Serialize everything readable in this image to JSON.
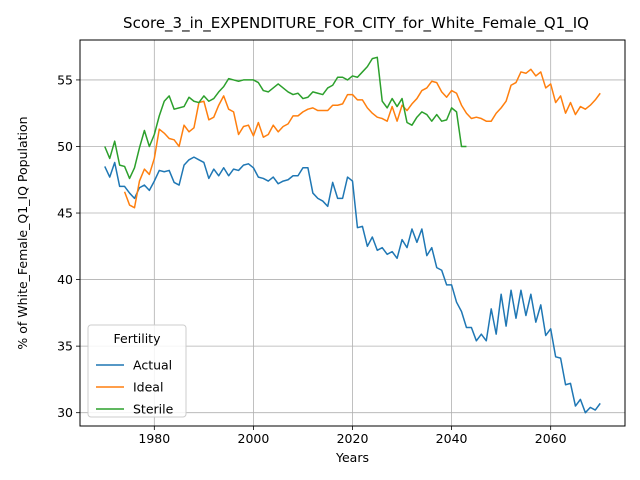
{
  "chart_data": {
    "type": "line",
    "title": "Score_3_in_EXPENDITURE_FOR_CITY_for_White_Female_Q1_IQ",
    "xlabel": "Years",
    "ylabel": "% of White_Female_Q1_IQ Population",
    "xlim": [
      1965,
      2075
    ],
    "ylim": [
      29,
      58
    ],
    "xticks": [
      1980,
      2000,
      2020,
      2040,
      2060
    ],
    "yticks": [
      30,
      35,
      40,
      45,
      50,
      55
    ],
    "grid": true,
    "legend": {
      "title": "Fertility",
      "position": "lower-left"
    },
    "series": [
      {
        "name": "Actual",
        "color": "#1f77b4",
        "x": [
          1970,
          1971,
          1972,
          1973,
          1974,
          1975,
          1976,
          1977,
          1978,
          1979,
          1980,
          1981,
          1982,
          1983,
          1984,
          1985,
          1986,
          1987,
          1988,
          1989,
          1990,
          1991,
          1992,
          1993,
          1994,
          1995,
          1996,
          1997,
          1998,
          1999,
          2000,
          2001,
          2002,
          2003,
          2004,
          2005,
          2006,
          2007,
          2008,
          2009,
          2010,
          2011,
          2012,
          2013,
          2014,
          2015,
          2016,
          2017,
          2018,
          2019,
          2020,
          2021,
          2022,
          2023,
          2024,
          2025,
          2026,
          2027,
          2028,
          2029,
          2030,
          2031,
          2032,
          2033,
          2034,
          2035,
          2036,
          2037,
          2038,
          2039,
          2040,
          2041,
          2042,
          2043,
          2044,
          2045,
          2046,
          2047,
          2048,
          2049,
          2050,
          2051,
          2052,
          2053,
          2054,
          2055,
          2056,
          2057,
          2058,
          2059,
          2060,
          2061,
          2062,
          2063,
          2064,
          2065,
          2066,
          2067,
          2068,
          2069,
          2070
        ],
        "values": [
          48.5,
          47.7,
          48.8,
          47.0,
          47.0,
          46.5,
          46.1,
          46.9,
          47.1,
          46.7,
          47.4,
          48.2,
          48.1,
          48.2,
          47.3,
          47.1,
          48.6,
          49.0,
          49.2,
          49.0,
          48.8,
          47.6,
          48.3,
          47.8,
          48.4,
          47.8,
          48.3,
          48.2,
          48.6,
          48.7,
          48.4,
          47.7,
          47.6,
          47.4,
          47.7,
          47.2,
          47.4,
          47.5,
          47.8,
          47.8,
          48.4,
          48.4,
          46.5,
          46.1,
          45.9,
          45.5,
          47.3,
          46.1,
          46.1,
          47.7,
          47.4,
          43.9,
          44.0,
          42.5,
          43.2,
          42.2,
          42.4,
          41.9,
          42.1,
          41.6,
          43.0,
          42.4,
          43.8,
          42.8,
          43.8,
          41.8,
          42.4,
          40.9,
          40.7,
          39.6,
          39.6,
          38.3,
          37.6,
          36.4,
          36.4,
          35.4,
          35.9,
          35.4,
          37.8,
          35.9,
          38.9,
          36.5,
          39.2,
          37.1,
          39.2,
          37.3,
          38.9,
          36.8,
          38.1,
          35.8,
          36.3,
          34.2,
          34.1,
          32.1,
          32.2,
          30.5,
          31.0,
          30.0,
          30.4,
          30.2,
          30.7
        ]
      },
      {
        "name": "Ideal",
        "color": "#ff7f0e",
        "x": [
          1974,
          1975,
          1976,
          1977,
          1978,
          1979,
          1980,
          1981,
          1982,
          1983,
          1984,
          1985,
          1986,
          1987,
          1988,
          1989,
          1990,
          1991,
          1992,
          1993,
          1994,
          1995,
          1996,
          1997,
          1998,
          1999,
          2000,
          2001,
          2002,
          2003,
          2004,
          2005,
          2006,
          2007,
          2008,
          2009,
          2010,
          2011,
          2012,
          2013,
          2014,
          2015,
          2016,
          2017,
          2018,
          2019,
          2020,
          2021,
          2022,
          2023,
          2024,
          2025,
          2026,
          2027,
          2028,
          2029,
          2030,
          2031,
          2032,
          2033,
          2034,
          2035,
          2036,
          2037,
          2038,
          2039,
          2040,
          2041,
          2042,
          2043,
          2044,
          2045,
          2046,
          2047,
          2048,
          2049,
          2050,
          2051,
          2052,
          2053,
          2054,
          2055,
          2056,
          2057,
          2058,
          2059,
          2060,
          2061,
          2062,
          2063,
          2064,
          2065,
          2066,
          2067,
          2068,
          2069,
          2070
        ],
        "values": [
          46.6,
          45.6,
          45.4,
          47.4,
          48.3,
          47.9,
          49.1,
          51.3,
          51.0,
          50.6,
          50.5,
          50.0,
          51.6,
          51.1,
          51.4,
          53.3,
          53.4,
          52.0,
          52.2,
          53.1,
          53.8,
          52.8,
          52.6,
          50.9,
          51.5,
          51.6,
          50.8,
          51.8,
          50.7,
          50.9,
          51.6,
          51.1,
          51.5,
          51.7,
          52.3,
          52.3,
          52.6,
          52.8,
          52.9,
          52.7,
          52.7,
          52.7,
          53.1,
          53.1,
          53.2,
          53.9,
          53.9,
          53.5,
          53.5,
          52.9,
          52.5,
          52.2,
          52.1,
          51.9,
          53.0,
          51.9,
          53.1,
          52.7,
          53.2,
          53.6,
          54.2,
          54.4,
          54.9,
          54.8,
          54.1,
          53.7,
          54.2,
          54.0,
          53.1,
          52.5,
          52.1,
          52.2,
          52.1,
          51.9,
          51.9,
          52.5,
          52.9,
          53.4,
          54.6,
          54.8,
          55.6,
          55.5,
          55.8,
          55.3,
          55.6,
          54.4,
          54.7,
          53.3,
          53.8,
          52.5,
          53.3,
          52.4,
          53.0,
          52.8,
          53.1,
          53.5,
          54.0
        ]
      },
      {
        "name": "Sterile",
        "color": "#2ca02c",
        "x": [
          1970,
          1971,
          1972,
          1973,
          1974,
          1975,
          1976,
          1977,
          1978,
          1979,
          1980,
          1981,
          1982,
          1983,
          1984,
          1985,
          1986,
          1987,
          1988,
          1989,
          1990,
          1991,
          1992,
          1993,
          1994,
          1995,
          1996,
          1997,
          1998,
          1999,
          2000,
          2001,
          2002,
          2003,
          2004,
          2005,
          2006,
          2007,
          2008,
          2009,
          2010,
          2011,
          2012,
          2013,
          2014,
          2015,
          2016,
          2017,
          2018,
          2019,
          2020,
          2021,
          2022,
          2023,
          2024,
          2025,
          2026,
          2027,
          2028,
          2029,
          2030,
          2031,
          2032,
          2033,
          2034,
          2035,
          2036,
          2037,
          2038,
          2039,
          2040,
          2041,
          2042,
          2043
        ],
        "values": [
          50.0,
          49.1,
          50.4,
          48.6,
          48.5,
          47.6,
          48.4,
          49.9,
          51.2,
          50.0,
          50.9,
          52.3,
          53.4,
          53.8,
          52.8,
          52.9,
          53.0,
          53.7,
          53.4,
          53.3,
          53.8,
          53.4,
          53.6,
          54.1,
          54.5,
          55.1,
          55.0,
          54.9,
          55.0,
          55.0,
          55.0,
          54.8,
          54.2,
          54.1,
          54.4,
          54.7,
          54.4,
          54.1,
          53.9,
          54.0,
          53.6,
          53.7,
          54.1,
          54.0,
          53.9,
          54.4,
          54.6,
          55.2,
          55.2,
          55.0,
          55.3,
          55.2,
          55.6,
          56.0,
          56.6,
          56.7,
          53.4,
          52.9,
          53.6,
          53.0,
          53.6,
          51.8,
          51.6,
          52.2,
          52.6,
          52.4,
          51.9,
          52.4,
          51.9,
          52.0,
          52.9,
          52.6,
          50.0,
          50.0
        ]
      }
    ]
  }
}
